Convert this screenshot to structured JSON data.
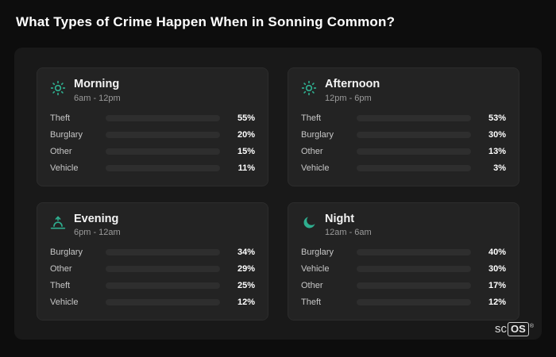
{
  "page": {
    "title": "What Types of Crime Happen When in Sonning Common?"
  },
  "brand": {
    "prefix": "sc",
    "suffix": "OS",
    "reg": "®"
  },
  "colors": {
    "accent_icon": "#2fae8f",
    "theft": "#a855f7",
    "burglary": "#e2792a",
    "other": "#64748b",
    "vehicle": "#3b82f6"
  },
  "cards": [
    {
      "id": "morning",
      "title": "Morning",
      "time": "6am - 12pm",
      "icon": "sun",
      "rows": [
        {
          "label": "Theft",
          "value": 55,
          "display": "55%",
          "color": "#a855f7"
        },
        {
          "label": "Burglary",
          "value": 20,
          "display": "20%",
          "color": "#e2792a"
        },
        {
          "label": "Other",
          "value": 15,
          "display": "15%",
          "color": "#64748b"
        },
        {
          "label": "Vehicle",
          "value": 11,
          "display": "11%",
          "color": "#3b82f6"
        }
      ]
    },
    {
      "id": "afternoon",
      "title": "Afternoon",
      "time": "12pm - 6pm",
      "icon": "sun",
      "rows": [
        {
          "label": "Theft",
          "value": 53,
          "display": "53%",
          "color": "#a855f7"
        },
        {
          "label": "Burglary",
          "value": 30,
          "display": "30%",
          "color": "#e2792a"
        },
        {
          "label": "Other",
          "value": 13,
          "display": "13%",
          "color": "#64748b"
        },
        {
          "label": "Vehicle",
          "value": 3,
          "display": "3%",
          "color": "#3b82f6"
        }
      ]
    },
    {
      "id": "evening",
      "title": "Evening",
      "time": "6pm - 12am",
      "icon": "sunset",
      "rows": [
        {
          "label": "Burglary",
          "value": 34,
          "display": "34%",
          "color": "#e2792a"
        },
        {
          "label": "Other",
          "value": 29,
          "display": "29%",
          "color": "#64748b"
        },
        {
          "label": "Theft",
          "value": 25,
          "display": "25%",
          "color": "#a855f7"
        },
        {
          "label": "Vehicle",
          "value": 12,
          "display": "12%",
          "color": "#3b82f6"
        }
      ]
    },
    {
      "id": "night",
      "title": "Night",
      "time": "12am - 6am",
      "icon": "moon",
      "rows": [
        {
          "label": "Burglary",
          "value": 40,
          "display": "40%",
          "color": "#e2792a"
        },
        {
          "label": "Vehicle",
          "value": 30,
          "display": "30%",
          "color": "#3b82f6"
        },
        {
          "label": "Other",
          "value": 17,
          "display": "17%",
          "color": "#64748b"
        },
        {
          "label": "Theft",
          "value": 12,
          "display": "12%",
          "color": "#a855f7"
        }
      ]
    }
  ],
  "chart_data": [
    {
      "type": "bar",
      "orientation": "horizontal",
      "title": "Morning",
      "subtitle": "6am - 12pm",
      "categories": [
        "Theft",
        "Burglary",
        "Other",
        "Vehicle"
      ],
      "values": [
        55,
        20,
        15,
        11
      ],
      "unit": "%",
      "xlim": [
        0,
        100
      ],
      "grid": false,
      "legend": false
    },
    {
      "type": "bar",
      "orientation": "horizontal",
      "title": "Afternoon",
      "subtitle": "12pm - 6pm",
      "categories": [
        "Theft",
        "Burglary",
        "Other",
        "Vehicle"
      ],
      "values": [
        53,
        30,
        13,
        3
      ],
      "unit": "%",
      "xlim": [
        0,
        100
      ],
      "grid": false,
      "legend": false
    },
    {
      "type": "bar",
      "orientation": "horizontal",
      "title": "Evening",
      "subtitle": "6pm - 12am",
      "categories": [
        "Burglary",
        "Other",
        "Theft",
        "Vehicle"
      ],
      "values": [
        34,
        29,
        25,
        12
      ],
      "unit": "%",
      "xlim": [
        0,
        100
      ],
      "grid": false,
      "legend": false
    },
    {
      "type": "bar",
      "orientation": "horizontal",
      "title": "Night",
      "subtitle": "12am - 6am",
      "categories": [
        "Burglary",
        "Vehicle",
        "Other",
        "Theft"
      ],
      "values": [
        40,
        30,
        17,
        12
      ],
      "unit": "%",
      "xlim": [
        0,
        100
      ],
      "grid": false,
      "legend": false
    }
  ]
}
